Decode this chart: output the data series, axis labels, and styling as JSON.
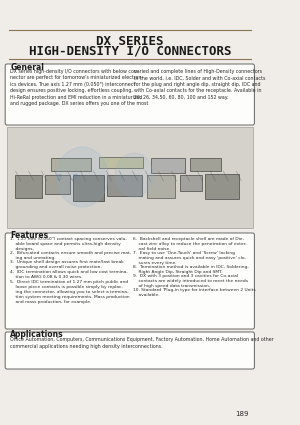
{
  "title_line1": "DX SERIES",
  "title_line2": "HIGH-DENSITY I/O CONNECTORS",
  "page_bg": "#f0ede8",
  "section_general_title": "General",
  "gen_left": "DX series high-density I/O connectors with below con-\nnector are perfect for tomorrow's miniaturized electron-\nics devices. True axis 1.27 mm (0.050\") interconnect\ndesign ensures positive locking, effortless coupling,\nHi-ReRal protection and EMI reduction in a miniaturized\nand rugged package. DX series offers you one of the most",
  "gen_right": "varied and complete lines of High-Density connectors\nin the world, i.e. IDC, Solder and with Co-axial contacts\nfor the plug and right angle dip, straight dip, IDC and\nwith Co-axial contacts for the receptacle. Available in\n20, 26, 34,50, 60, 80, 100 and 152 way.",
  "features_title": "Features",
  "feat_left": [
    "1.  1.27 mm (0.050\") contact spacing conserves valu-\n    able board space and permits ultra-high density\n    designs.",
    "2.  Bifurcated contacts ensure smooth and precise mat-\n    ing and unmating.",
    "3.  Unique shell design assures first mate/last break\n    grounding and overall noise protection.",
    "4.  IDC termination allows quick and low cost termina-\n    tion to AWG 0.08 & 0.30 wires.",
    "5.  Direct IDC termination of 1.27 mm pitch public and\n    loose piece contacts is possible simply by replac-\n    ing the connector, allowing you to select a termina-\n    tion system meeting requirements. Mass production\n    and mass production, for example."
  ],
  "feat_right": [
    "6.  Backshell and receptacle shell are made of Die-\n    cast zinc alloy to reduce the penetration of exter-\n    nal field noise.",
    "7.  Easy to use 'One-Touch' and 'Screw' locking\n    mating and assures quick and easy 'positive' clo-\n    sures every time.",
    "8.  Termination method is available in IDC, Soldering,\n    Right Angle Dip, Straight Dip and SMT.",
    "9.  DX with 3 position and 3 cavities for Co-axial\n    contacts are widely introduced to meet the needs\n    of high speed data transmission.",
    "10. Standard 'Plug-in type for interface between 2 Units\n    available."
  ],
  "applications_title": "Applications",
  "app_text": "Office Automation, Computers, Communications Equipment, Factory Automation, Home Automation and other\ncommercial applications needing high density interconnections.",
  "page_number": "189",
  "title_color": "#1a1a1a",
  "text_color": "#2a2a2a",
  "header_line_color": "#8b7355",
  "box_border_color": "#555555",
  "box_face_color": "#ffffff"
}
